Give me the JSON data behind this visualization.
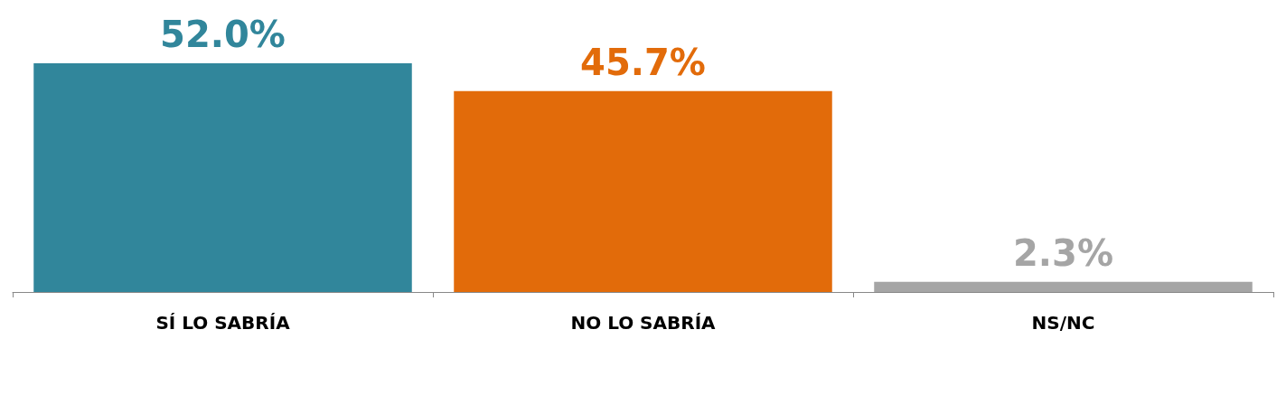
{
  "chart_data": {
    "type": "bar",
    "categories": [
      "SÍ LO SABRÍA",
      "NO LO SABRÍA",
      "NS/NC"
    ],
    "values": [
      52.0,
      45.7,
      2.3
    ],
    "value_labels": [
      "52.0%",
      "45.7%",
      "2.3%"
    ],
    "colors": [
      "#31869b",
      "#e26b0a",
      "#a5a5a5"
    ]
  }
}
